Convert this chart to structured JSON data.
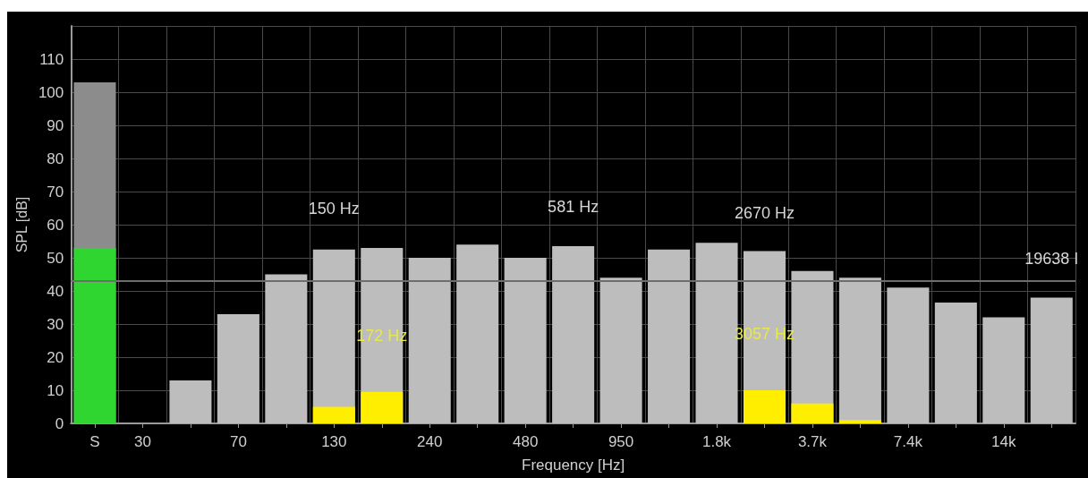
{
  "chart_data": {
    "type": "bar",
    "xlabel": "Frequency [Hz]",
    "ylabel": "SPL [dB]",
    "categories": [
      "S",
      "30",
      null,
      "70",
      null,
      "130",
      null,
      "240",
      null,
      "480",
      null,
      "950",
      null,
      "1.8k",
      null,
      "3.7k",
      null,
      "7.4k",
      null,
      "14k",
      null
    ],
    "series": [
      {
        "values": [
          103,
          null,
          13,
          33,
          45,
          52.5,
          53,
          50,
          54,
          50,
          53.5,
          44,
          52.5,
          54.5,
          52,
          46,
          44,
          41,
          36.5,
          32,
          38
        ],
        "colors": [
          "#8c8c8c",
          "#bdbdbd",
          "#bdbdbd",
          "#bdbdbd",
          "#bdbdbd",
          "#bdbdbd",
          "#bdbdbd",
          "#bdbdbd",
          "#bdbdbd",
          "#bdbdbd",
          "#bdbdbd",
          "#bdbdbd",
          "#bdbdbd",
          "#bdbdbd",
          "#bdbdbd",
          "#bdbdbd",
          "#bdbdbd",
          "#bdbdbd",
          "#bdbdbd",
          "#bdbdbd",
          "#bdbdbd"
        ]
      },
      {
        "values": [
          53,
          null,
          null,
          null,
          null,
          5,
          9.5,
          null,
          null,
          null,
          null,
          null,
          null,
          null,
          10,
          6,
          1,
          null,
          null,
          null,
          null
        ],
        "colors": [
          "#2fd62f",
          "#ffee00",
          "#ffee00",
          "#ffee00",
          "#ffee00",
          "#ffee00",
          "#ffee00",
          "#ffee00",
          "#ffee00",
          "#ffee00",
          "#ffee00",
          "#ffee00",
          "#ffee00",
          "#ffee00",
          "#ffee00",
          "#ffee00",
          "#ffee00",
          "#ffee00",
          "#ffee00",
          "#ffee00",
          "#ffee00"
        ]
      }
    ],
    "ylim": [
      0,
      120
    ],
    "yticks": [
      0,
      10,
      20,
      30,
      40,
      50,
      60,
      70,
      80,
      90,
      100,
      110,
      {
        "value": 120,
        "label": null
      }
    ],
    "ref_lines": [
      {
        "axis": "y",
        "value": 43,
        "color": "#6e6e6e"
      }
    ],
    "annotations": [
      "150 Hz",
      "581 Hz",
      "2670 Hz",
      "19638 I",
      "172 Hz",
      "3057 Hz"
    ],
    "grid": true
  }
}
